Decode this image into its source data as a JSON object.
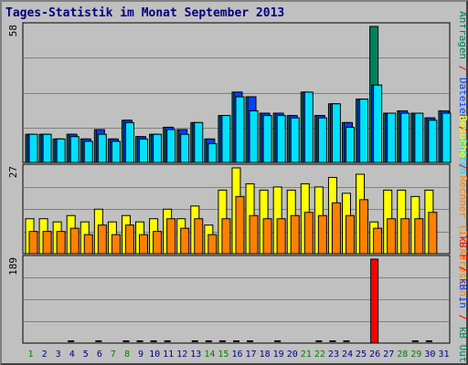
{
  "title": "Tages-Statistik im Monat September 2013",
  "colors": {
    "background": "#c0c0c0",
    "title": "#000080",
    "hits": "#00805c",
    "files": "#0040ff",
    "pages": "#00e0ff",
    "visits": "#ffff00",
    "sites": "#ff8000",
    "kbytes": "#ff0000",
    "day_label_normal": "#00008b",
    "day_label_weekend": "#008000"
  },
  "chart_data": [
    {
      "type": "bar",
      "panel": "top",
      "scale_label": "58",
      "right_label": {
        "parts": [
          {
            "text": "Anfragen",
            "color": "#00805c"
          },
          {
            "text": " / ",
            "color": "#ff0000"
          },
          {
            "text": "Dateien",
            "color": "#0040ff"
          },
          {
            "text": " / ",
            "color": "#ff0000"
          },
          {
            "text": "Seiten",
            "color": "#00e0ff"
          }
        ]
      },
      "categories": [
        "1",
        "2",
        "3",
        "4",
        "5",
        "6",
        "7",
        "8",
        "9",
        "10",
        "11",
        "12",
        "13",
        "14",
        "15",
        "16",
        "17",
        "18",
        "19",
        "20",
        "21",
        "22",
        "23",
        "24",
        "25",
        "26",
        "27",
        "28",
        "29",
        "30",
        "31"
      ],
      "ylim": [
        0,
        58
      ],
      "series": [
        {
          "name": "Anfragen",
          "values": [
            12,
            12,
            10,
            12,
            10,
            14,
            10,
            18,
            11,
            12,
            15,
            14,
            17,
            10,
            20,
            30,
            28,
            21,
            21,
            20,
            30,
            20,
            25,
            17,
            27,
            58,
            21,
            22,
            21,
            19,
            22
          ]
        },
        {
          "name": "Dateien",
          "values": [
            12,
            12,
            10,
            12,
            10,
            14,
            10,
            18,
            11,
            12,
            15,
            14,
            17,
            10,
            20,
            30,
            28,
            21,
            21,
            20,
            30,
            20,
            25,
            17,
            27,
            33,
            21,
            22,
            21,
            19,
            22
          ]
        },
        {
          "name": "Seiten",
          "values": [
            12,
            12,
            10,
            11,
            9,
            12,
            9,
            17,
            10,
            12,
            14,
            12,
            17,
            8,
            20,
            28,
            22,
            20,
            20,
            19,
            30,
            19,
            25,
            15,
            27,
            33,
            21,
            21,
            21,
            18,
            21
          ]
        }
      ]
    },
    {
      "type": "bar",
      "panel": "middle",
      "scale_label": "27",
      "right_label": {
        "parts": [
          {
            "text": "Besuche",
            "color": "#ffff00"
          },
          {
            "text": " / ",
            "color": "#ff0000"
          },
          {
            "text": "Rechner (IP-Adressen)",
            "color": "#ff8000"
          }
        ]
      },
      "categories": [
        "1",
        "2",
        "3",
        "4",
        "5",
        "6",
        "7",
        "8",
        "9",
        "10",
        "11",
        "12",
        "13",
        "14",
        "15",
        "16",
        "17",
        "18",
        "19",
        "20",
        "21",
        "22",
        "23",
        "24",
        "25",
        "26",
        "27",
        "28",
        "29",
        "30",
        "31"
      ],
      "ylim": [
        0,
        27
      ],
      "series": [
        {
          "name": "Besuche",
          "values": [
            11,
            11,
            10,
            12,
            10,
            14,
            10,
            12,
            10,
            11,
            14,
            11,
            15,
            9,
            20,
            27,
            22,
            20,
            21,
            20,
            22,
            21,
            24,
            19,
            25,
            10,
            20,
            20,
            18,
            20,
            0
          ]
        },
        {
          "name": "Rechner (IP-Adressen)",
          "values": [
            7,
            7,
            7,
            8,
            6,
            9,
            6,
            9,
            6,
            7,
            11,
            8,
            11,
            6,
            11,
            18,
            12,
            11,
            11,
            12,
            13,
            12,
            16,
            12,
            17,
            8,
            11,
            11,
            11,
            13,
            0
          ]
        }
      ]
    },
    {
      "type": "bar",
      "panel": "bottom",
      "scale_label": "189",
      "right_label": {
        "parts": [
          {
            "text": "kB F",
            "color": "#ff0000"
          },
          {
            "text": " / ",
            "color": "#ff0000"
          },
          {
            "text": "kB In",
            "color": "#0040ff"
          },
          {
            "text": " / ",
            "color": "#ff0000"
          },
          {
            "text": "kB Out",
            "color": "#00805c"
          }
        ]
      },
      "categories": [
        "1",
        "2",
        "3",
        "4",
        "5",
        "6",
        "7",
        "8",
        "9",
        "10",
        "11",
        "12",
        "13",
        "14",
        "15",
        "16",
        "17",
        "18",
        "19",
        "20",
        "21",
        "22",
        "23",
        "24",
        "25",
        "26",
        "27",
        "28",
        "29",
        "30",
        "31"
      ],
      "ylim": [
        0,
        189
      ],
      "series": [
        {
          "name": "kB F",
          "values": [
            0,
            0,
            0,
            2,
            0,
            2,
            0,
            2,
            2,
            2,
            2,
            0,
            2,
            2,
            2,
            2,
            2,
            0,
            2,
            0,
            0,
            2,
            2,
            2,
            0,
            189,
            0,
            0,
            2,
            2,
            0
          ]
        }
      ]
    }
  ],
  "x_labels": {
    "days": [
      "1",
      "2",
      "3",
      "4",
      "5",
      "6",
      "7",
      "8",
      "9",
      "10",
      "11",
      "12",
      "13",
      "14",
      "15",
      "16",
      "17",
      "18",
      "19",
      "20",
      "21",
      "22",
      "23",
      "24",
      "25",
      "26",
      "27",
      "28",
      "29",
      "30",
      "31"
    ],
    "weekend_days": [
      "1",
      "7",
      "8",
      "14",
      "15",
      "21",
      "22",
      "28",
      "29"
    ]
  }
}
